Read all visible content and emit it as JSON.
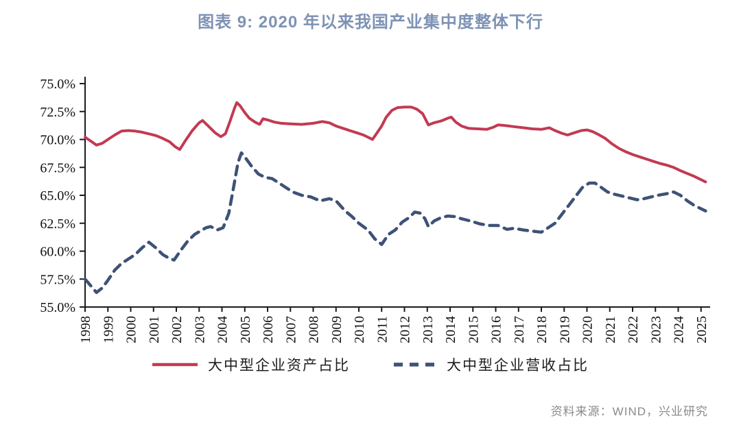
{
  "chart_data": {
    "type": "line",
    "title": "图表 9: 2020 年以来我国产业集中度整体下行",
    "title_color": "#7e92b5",
    "xlabel": "",
    "ylabel": "",
    "ylim": [
      55,
      75
    ],
    "x_range": [
      1998,
      2025.4
    ],
    "grid": false,
    "legend_position": "bottom",
    "axis_color": "#1a1a1a",
    "y_tick_labels": [
      "75.0%",
      "72.5%",
      "70.0%",
      "67.5%",
      "65.0%",
      "62.5%",
      "60.0%",
      "57.5%",
      "55.0%"
    ],
    "y_tick_values": [
      75,
      72.5,
      70,
      67.5,
      65,
      62.5,
      60,
      57.5,
      55
    ],
    "x_tick_labels": [
      "1998",
      "1999",
      "2000",
      "2001",
      "2002",
      "2003",
      "2004",
      "2005",
      "2006",
      "2007",
      "2008",
      "2009",
      "2010",
      "2011",
      "2012",
      "2013",
      "2014",
      "2015",
      "2016",
      "2017",
      "2018",
      "2019",
      "2020",
      "2021",
      "2022",
      "2023",
      "2024",
      "2025"
    ],
    "x_tick_values": [
      1998,
      1999,
      2000,
      2001,
      2002,
      2003,
      2004,
      2005,
      2006,
      2007,
      2008,
      2009,
      2010,
      2011,
      2012,
      2013,
      2014,
      2015,
      2016,
      2017,
      2018,
      2019,
      2020,
      2021,
      2022,
      2023,
      2024,
      2025
    ],
    "series": [
      {
        "name": "大中型企业资产占比",
        "color": "#c23a52",
        "line_style": "solid",
        "points": [
          [
            1998.0,
            70.2
          ],
          [
            1998.25,
            69.85
          ],
          [
            1998.5,
            69.5
          ],
          [
            1998.75,
            69.65
          ],
          [
            1999.0,
            70.0
          ],
          [
            1999.3,
            70.4
          ],
          [
            1999.6,
            70.75
          ],
          [
            1999.9,
            70.8
          ],
          [
            2000.2,
            70.75
          ],
          [
            2000.5,
            70.65
          ],
          [
            2000.8,
            70.5
          ],
          [
            2001.1,
            70.35
          ],
          [
            2001.4,
            70.1
          ],
          [
            2001.7,
            69.8
          ],
          [
            2001.95,
            69.35
          ],
          [
            2002.15,
            69.1
          ],
          [
            2002.4,
            69.9
          ],
          [
            2002.7,
            70.8
          ],
          [
            2003.0,
            71.5
          ],
          [
            2003.15,
            71.7
          ],
          [
            2003.4,
            71.2
          ],
          [
            2003.7,
            70.6
          ],
          [
            2003.95,
            70.25
          ],
          [
            2004.15,
            70.5
          ],
          [
            2004.35,
            71.6
          ],
          [
            2004.55,
            72.8
          ],
          [
            2004.65,
            73.3
          ],
          [
            2004.8,
            73.0
          ],
          [
            2005.0,
            72.4
          ],
          [
            2005.2,
            71.9
          ],
          [
            2005.45,
            71.55
          ],
          [
            2005.65,
            71.35
          ],
          [
            2005.8,
            71.85
          ],
          [
            2006.0,
            71.75
          ],
          [
            2006.3,
            71.55
          ],
          [
            2006.6,
            71.45
          ],
          [
            2007.0,
            71.4
          ],
          [
            2007.5,
            71.35
          ],
          [
            2008.0,
            71.45
          ],
          [
            2008.4,
            71.6
          ],
          [
            2008.7,
            71.5
          ],
          [
            2009.0,
            71.2
          ],
          [
            2009.3,
            71.0
          ],
          [
            2009.6,
            70.8
          ],
          [
            2009.9,
            70.6
          ],
          [
            2010.2,
            70.4
          ],
          [
            2010.45,
            70.15
          ],
          [
            2010.6,
            70.0
          ],
          [
            2010.8,
            70.6
          ],
          [
            2011.0,
            71.2
          ],
          [
            2011.2,
            72.0
          ],
          [
            2011.45,
            72.6
          ],
          [
            2011.7,
            72.85
          ],
          [
            2012.0,
            72.9
          ],
          [
            2012.3,
            72.9
          ],
          [
            2012.55,
            72.7
          ],
          [
            2012.8,
            72.3
          ],
          [
            2012.95,
            71.7
          ],
          [
            2013.05,
            71.3
          ],
          [
            2013.3,
            71.5
          ],
          [
            2013.6,
            71.65
          ],
          [
            2013.9,
            71.9
          ],
          [
            2014.05,
            72.0
          ],
          [
            2014.25,
            71.55
          ],
          [
            2014.5,
            71.2
          ],
          [
            2014.8,
            71.0
          ],
          [
            2015.2,
            70.95
          ],
          [
            2015.6,
            70.9
          ],
          [
            2015.9,
            71.1
          ],
          [
            2016.1,
            71.3
          ],
          [
            2016.4,
            71.25
          ],
          [
            2016.8,
            71.15
          ],
          [
            2017.2,
            71.05
          ],
          [
            2017.6,
            70.95
          ],
          [
            2018.0,
            70.9
          ],
          [
            2018.35,
            71.05
          ],
          [
            2018.6,
            70.8
          ],
          [
            2018.9,
            70.55
          ],
          [
            2019.15,
            70.4
          ],
          [
            2019.45,
            70.6
          ],
          [
            2019.75,
            70.8
          ],
          [
            2020.0,
            70.85
          ],
          [
            2020.25,
            70.7
          ],
          [
            2020.5,
            70.45
          ],
          [
            2020.8,
            70.1
          ],
          [
            2021.1,
            69.6
          ],
          [
            2021.4,
            69.2
          ],
          [
            2021.7,
            68.9
          ],
          [
            2022.0,
            68.65
          ],
          [
            2022.3,
            68.45
          ],
          [
            2022.6,
            68.25
          ],
          [
            2022.9,
            68.05
          ],
          [
            2023.2,
            67.85
          ],
          [
            2023.5,
            67.7
          ],
          [
            2023.8,
            67.5
          ],
          [
            2024.1,
            67.2
          ],
          [
            2024.4,
            66.95
          ],
          [
            2024.7,
            66.7
          ],
          [
            2025.0,
            66.4
          ],
          [
            2025.2,
            66.2
          ]
        ]
      },
      {
        "name": "大中型企业营收占比",
        "color": "#3e5277",
        "line_style": "dashed",
        "points": [
          [
            1998.0,
            57.5
          ],
          [
            1998.25,
            56.9
          ],
          [
            1998.5,
            56.3
          ],
          [
            1998.75,
            56.7
          ],
          [
            1999.0,
            57.4
          ],
          [
            1999.3,
            58.3
          ],
          [
            1999.6,
            58.9
          ],
          [
            1999.9,
            59.3
          ],
          [
            2000.2,
            59.7
          ],
          [
            2000.5,
            60.3
          ],
          [
            2000.8,
            60.8
          ],
          [
            2001.1,
            60.3
          ],
          [
            2001.4,
            59.7
          ],
          [
            2001.7,
            59.35
          ],
          [
            2001.9,
            59.2
          ],
          [
            2002.2,
            60.1
          ],
          [
            2002.5,
            60.9
          ],
          [
            2002.8,
            61.5
          ],
          [
            2003.05,
            61.8
          ],
          [
            2003.3,
            62.1
          ],
          [
            2003.5,
            62.2
          ],
          [
            2003.8,
            61.9
          ],
          [
            2004.05,
            62.1
          ],
          [
            2004.3,
            63.4
          ],
          [
            2004.5,
            65.6
          ],
          [
            2004.7,
            67.9
          ],
          [
            2004.85,
            68.8
          ],
          [
            2005.05,
            68.3
          ],
          [
            2005.3,
            67.6
          ],
          [
            2005.6,
            66.9
          ],
          [
            2005.9,
            66.6
          ],
          [
            2006.2,
            66.5
          ],
          [
            2006.5,
            66.1
          ],
          [
            2006.8,
            65.7
          ],
          [
            2007.1,
            65.3
          ],
          [
            2007.5,
            65.0
          ],
          [
            2007.9,
            64.85
          ],
          [
            2008.3,
            64.5
          ],
          [
            2008.7,
            64.7
          ],
          [
            2009.0,
            64.5
          ],
          [
            2009.4,
            63.6
          ],
          [
            2009.7,
            63.1
          ],
          [
            2010.0,
            62.5
          ],
          [
            2010.4,
            61.9
          ],
          [
            2010.7,
            61.1
          ],
          [
            2011.0,
            60.6
          ],
          [
            2011.3,
            61.5
          ],
          [
            2011.6,
            61.9
          ],
          [
            2011.9,
            62.6
          ],
          [
            2012.2,
            63.0
          ],
          [
            2012.45,
            63.5
          ],
          [
            2012.7,
            63.4
          ],
          [
            2012.9,
            62.9
          ],
          [
            2013.05,
            62.2
          ],
          [
            2013.3,
            62.7
          ],
          [
            2013.6,
            63.0
          ],
          [
            2013.9,
            63.15
          ],
          [
            2014.2,
            63.1
          ],
          [
            2014.5,
            62.9
          ],
          [
            2014.9,
            62.7
          ],
          [
            2015.3,
            62.45
          ],
          [
            2015.7,
            62.3
          ],
          [
            2016.1,
            62.3
          ],
          [
            2016.5,
            61.95
          ],
          [
            2016.8,
            62.05
          ],
          [
            2017.2,
            61.9
          ],
          [
            2017.6,
            61.8
          ],
          [
            2018.0,
            61.7
          ],
          [
            2018.3,
            62.1
          ],
          [
            2018.6,
            62.5
          ],
          [
            2018.9,
            63.3
          ],
          [
            2019.2,
            64.1
          ],
          [
            2019.5,
            64.9
          ],
          [
            2019.8,
            65.7
          ],
          [
            2020.1,
            66.1
          ],
          [
            2020.35,
            66.1
          ],
          [
            2020.6,
            65.75
          ],
          [
            2020.9,
            65.3
          ],
          [
            2021.2,
            65.1
          ],
          [
            2021.6,
            64.9
          ],
          [
            2021.9,
            64.75
          ],
          [
            2022.2,
            64.6
          ],
          [
            2022.5,
            64.7
          ],
          [
            2022.8,
            64.85
          ],
          [
            2023.1,
            65.0
          ],
          [
            2023.5,
            65.15
          ],
          [
            2023.8,
            65.3
          ],
          [
            2024.1,
            65.0
          ],
          [
            2024.4,
            64.5
          ],
          [
            2024.7,
            64.1
          ],
          [
            2025.0,
            63.8
          ],
          [
            2025.2,
            63.6
          ]
        ]
      }
    ]
  },
  "source": {
    "text": "资料来源：WIND，兴业研究",
    "color": "#8a8a8a"
  }
}
